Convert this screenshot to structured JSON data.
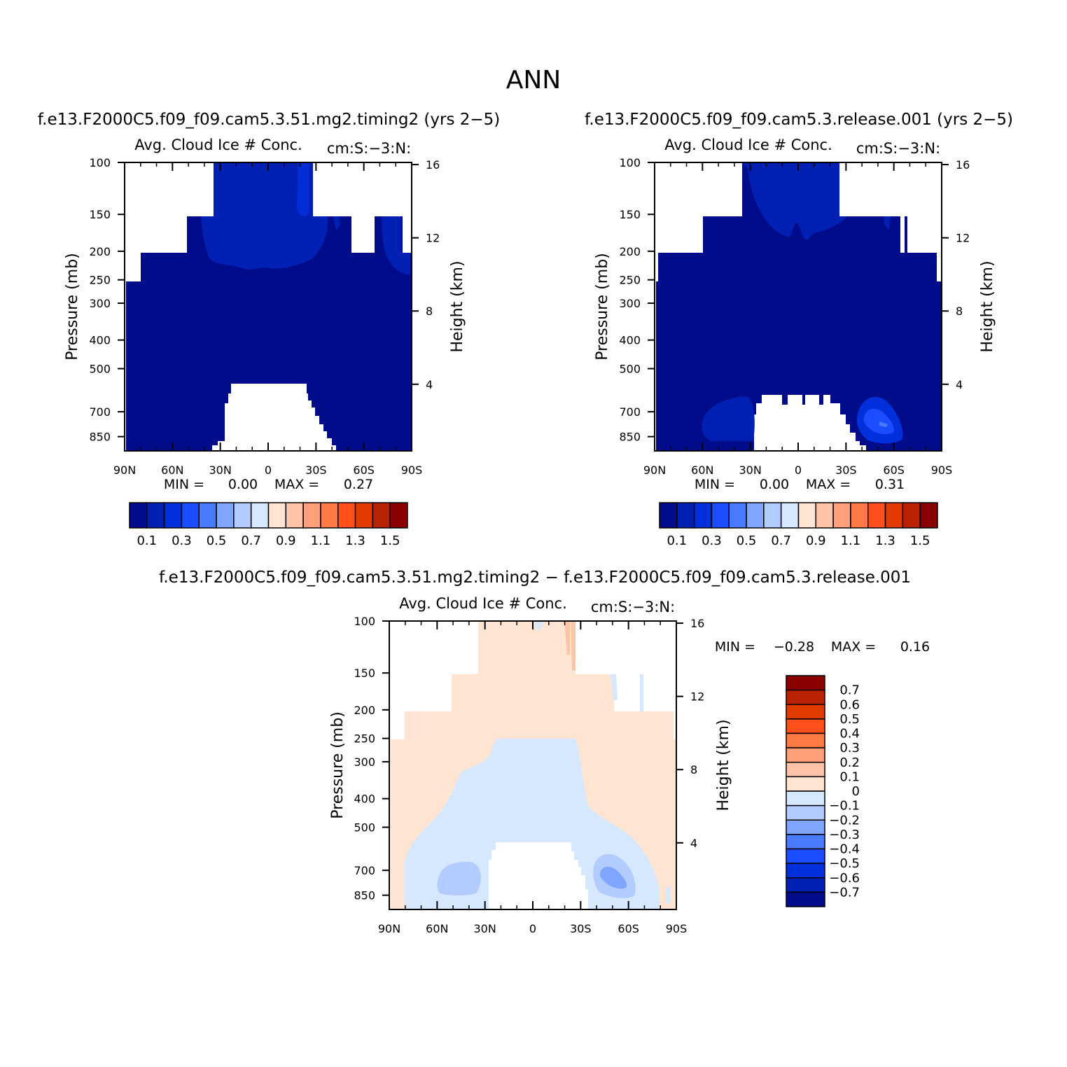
{
  "figure": {
    "title": "ANN"
  },
  "colors": {
    "blues": [
      "#000c8a",
      "#0020b4",
      "#0030dc",
      "#1a4dff",
      "#4a7bff",
      "#7fa5ff",
      "#b3ccff",
      "#d6e8ff"
    ],
    "reds": [
      "#ffe4d2",
      "#ffc4a8",
      "#ffa07a",
      "#ff7a45",
      "#ff4f1a",
      "#e33a00",
      "#b82200",
      "#8a0000"
    ],
    "ramp": [
      "#000c8a",
      "#0020b4",
      "#0030dc",
      "#1a4dff",
      "#4a7bff",
      "#7fa5ff",
      "#b3ccff",
      "#d6e8ff",
      "#ffe4d2",
      "#ffc4a8",
      "#ffa07a",
      "#ff7a45",
      "#ff4f1a",
      "#e33a00",
      "#b82200",
      "#8a0000"
    ]
  },
  "chart_data": [
    {
      "type": "heatmap",
      "case_title": "f.e13.F2000C5.f09_f09.cam5.3.51.mg2.timing2 (yrs 2−5)",
      "field_label": "Avg. Cloud Ice # Conc.",
      "units": "cm:S:−3:N:",
      "ylabel": "Pressure (mb)",
      "y2label": "Height (km)",
      "x_ticks": [
        "90N",
        "60N",
        "30N",
        "0",
        "30S",
        "60S",
        "90S"
      ],
      "y_ticks": [
        "100",
        "150",
        "200",
        "250",
        "300",
        "400",
        "500",
        "700",
        "850"
      ],
      "y_tick_values": [
        100,
        150,
        200,
        250,
        300,
        400,
        500,
        700,
        850
      ],
      "y2_ticks": [
        "16",
        "12",
        "8",
        "4"
      ],
      "y2_tick_values": [
        16,
        12,
        8,
        4
      ],
      "stats": {
        "min_label": "MIN =",
        "min": "0.00",
        "max_label": "MAX =",
        "max": "0.27"
      },
      "colorbar_labels": [
        "0.1",
        "0.3",
        "0.5",
        "0.7",
        "0.9",
        "1.1",
        "1.3",
        "1.5"
      ],
      "contour_levels": [
        0.1,
        0.2,
        0.3,
        0.4,
        0.5,
        0.6,
        0.7,
        0.8,
        0.9,
        1.0,
        1.1,
        1.2,
        1.3,
        1.4,
        1.5
      ],
      "ylim": [
        100,
        950
      ],
      "xlim": [
        "90N",
        "90S"
      ]
    },
    {
      "type": "heatmap",
      "case_title": "f.e13.F2000C5.f09_f09.cam5.3.release.001 (yrs 2−5)",
      "field_label": "Avg. Cloud Ice # Conc.",
      "units": "cm:S:−3:N:",
      "ylabel": "Pressure (mb)",
      "y2label": "Height (km)",
      "x_ticks": [
        "90N",
        "60N",
        "30N",
        "0",
        "30S",
        "60S",
        "90S"
      ],
      "y_ticks": [
        "100",
        "150",
        "200",
        "250",
        "300",
        "400",
        "500",
        "700",
        "850"
      ],
      "y_tick_values": [
        100,
        150,
        200,
        250,
        300,
        400,
        500,
        700,
        850
      ],
      "y2_ticks": [
        "16",
        "12",
        "8",
        "4"
      ],
      "y2_tick_values": [
        16,
        12,
        8,
        4
      ],
      "stats": {
        "min_label": "MIN =",
        "min": "0.00",
        "max_label": "MAX =",
        "max": "0.31"
      },
      "colorbar_labels": [
        "0.1",
        "0.3",
        "0.5",
        "0.7",
        "0.9",
        "1.1",
        "1.3",
        "1.5"
      ],
      "contour_levels": [
        0.1,
        0.2,
        0.3,
        0.4,
        0.5,
        0.6,
        0.7,
        0.8,
        0.9,
        1.0,
        1.1,
        1.2,
        1.3,
        1.4,
        1.5
      ],
      "ylim": [
        100,
        950
      ],
      "xlim": [
        "90N",
        "90S"
      ]
    },
    {
      "type": "heatmap",
      "case_title": "f.e13.F2000C5.f09_f09.cam5.3.51.mg2.timing2 − f.e13.F2000C5.f09_f09.cam5.3.release.001",
      "field_label": "Avg. Cloud Ice # Conc.",
      "units": "cm:S:−3:N:",
      "ylabel": "Pressure (mb)",
      "y2label": "Height (km)",
      "x_ticks": [
        "90N",
        "60N",
        "30N",
        "0",
        "30S",
        "60S",
        "90S"
      ],
      "y_ticks": [
        "100",
        "150",
        "200",
        "250",
        "300",
        "400",
        "500",
        "700",
        "850"
      ],
      "y_tick_values": [
        100,
        150,
        200,
        250,
        300,
        400,
        500,
        700,
        850
      ],
      "y2_ticks": [
        "16",
        "12",
        "8",
        "4"
      ],
      "y2_tick_values": [
        16,
        12,
        8,
        4
      ],
      "stats": {
        "min_label": "MIN =",
        "min": "−0.28",
        "max_label": "MAX =",
        "max": "0.16"
      },
      "colorbar_labels": [
        "0.7",
        "0.6",
        "0.5",
        "0.4",
        "0.3",
        "0.2",
        "0.1",
        "0",
        "−0.1",
        "−0.2",
        "−0.3",
        "−0.4",
        "−0.5",
        "−0.6",
        "−0.7"
      ],
      "contour_levels": [
        -0.7,
        -0.6,
        -0.5,
        -0.4,
        -0.3,
        -0.2,
        -0.1,
        0,
        0.1,
        0.2,
        0.3,
        0.4,
        0.5,
        0.6,
        0.7
      ],
      "ylim": [
        100,
        950
      ],
      "xlim": [
        "90N",
        "90S"
      ]
    }
  ]
}
